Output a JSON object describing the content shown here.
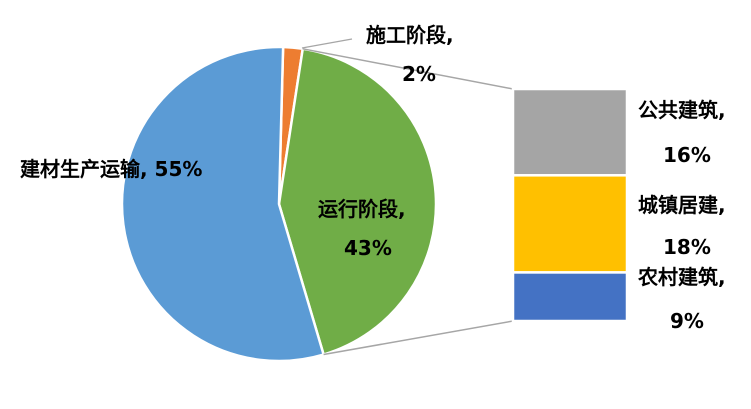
{
  "chart_data": {
    "type": "pie",
    "subtype": "bar-of-pie",
    "title": "",
    "slices": [
      {
        "label": "建材生产运输, 55%",
        "category": "建材生产运输",
        "value": 55,
        "color": "#5B9BD5"
      },
      {
        "label": "施工阶段,",
        "label2": "2%",
        "category": "施工阶段",
        "value": 2,
        "color": "#ED7D31"
      },
      {
        "label": "运行阶段,",
        "label2": "43%",
        "category": "运行阶段",
        "value": 43,
        "color": "#70AD47"
      }
    ],
    "breakdown_of": "运行阶段",
    "bar": [
      {
        "label": "公共建筑,",
        "label2": "16%",
        "category": "公共建筑",
        "value": 16,
        "color": "#A5A5A5"
      },
      {
        "label": "城镇居建,",
        "label2": "18%",
        "category": "城镇居建",
        "value": 18,
        "color": "#FFC000"
      },
      {
        "label": "农村建筑,",
        "label2": "9%",
        "category": "农村建筑",
        "value": 9,
        "color": "#4472C4"
      }
    ],
    "connector_color": "#A6A6A6"
  }
}
